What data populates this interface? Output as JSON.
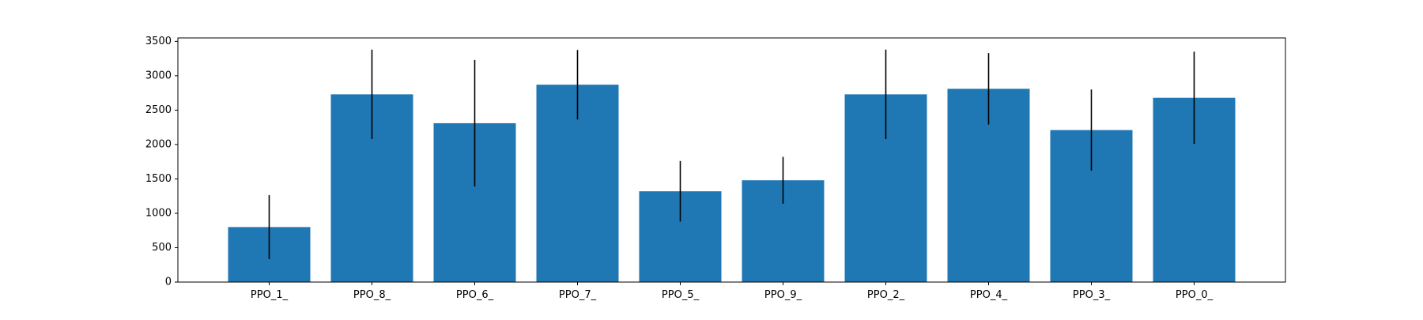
{
  "chart_data": {
    "type": "bar",
    "title": "",
    "xlabel": "",
    "ylabel": "",
    "categories": [
      "PPO_1_",
      "PPO_8_",
      "PPO_6_",
      "PPO_7_",
      "PPO_5_",
      "PPO_9_",
      "PPO_2_",
      "PPO_4_",
      "PPO_3_",
      "PPO_0_"
    ],
    "values": [
      800,
      2730,
      2310,
      2870,
      1320,
      1480,
      2730,
      2810,
      2210,
      2680
    ],
    "errors": [
      465,
      650,
      920,
      505,
      440,
      340,
      650,
      520,
      590,
      670
    ],
    "ylim": [
      0,
      3550
    ],
    "yticks": [
      0,
      500,
      1000,
      1500,
      2000,
      2500,
      3000,
      3500
    ],
    "ytick_labels": [
      "0",
      "500",
      "1000",
      "1500",
      "2000",
      "2500",
      "3000",
      "3500"
    ],
    "grid": false,
    "legend": false,
    "colors": {
      "bar": "#1f77b4",
      "error": "#000000",
      "axes": "#000000"
    }
  }
}
